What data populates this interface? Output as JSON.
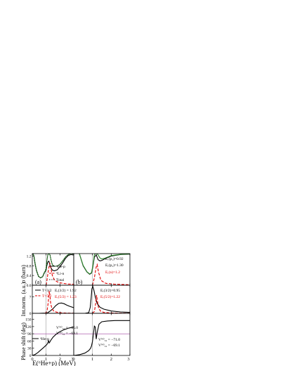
{
  "figure": {
    "x_axis_label": "E(⁶He+p)  (MeV)",
    "panel_a_tag": "(a)",
    "panel_b_tag": "(b)"
  },
  "colors": {
    "black": "#000000",
    "red": "#e00000",
    "green": "#2e8b2e",
    "vline": "#999999",
    "hline": "#a040a0"
  },
  "chart_data": [
    {
      "id": "a-top",
      "type": "line",
      "ylabel": "σ (barn)",
      "xlim": [
        0,
        3
      ],
      "ylim": [
        0,
        1.3
      ],
      "yticks": [
        0,
        0.4,
        0.8,
        1.2
      ],
      "ytick_labels": [
        "0.0",
        "0.4",
        "0.8",
        "1.2"
      ],
      "xticks": [
        0,
        1,
        2,
        3
      ],
      "legend": [
        "⁶He-p",
        "⁶Li-n",
        "Total"
      ],
      "series": [
        {
          "name": "⁶He-p",
          "color": "#000000",
          "dash": "",
          "x": [
            0.05,
            0.12,
            0.2,
            0.3,
            0.45,
            0.6,
            0.75,
            0.85,
            0.95,
            1.0,
            1.05,
            1.12,
            1.2,
            1.28,
            1.35,
            1.45,
            1.6,
            1.8,
            2.0,
            2.2,
            2.4,
            2.6,
            2.8,
            3.0
          ],
          "y": [
            1.3,
            1.18,
            0.88,
            0.6,
            0.36,
            0.3,
            0.35,
            0.48,
            0.58,
            0.63,
            0.8,
            0.95,
            0.99,
            0.82,
            0.72,
            0.62,
            0.59,
            0.63,
            0.76,
            0.92,
            1.1,
            1.22,
            1.26,
            1.24
          ]
        },
        {
          "name": "⁶Li-n",
          "color": "#e00000",
          "dash": "4,2",
          "x": [
            1.0,
            1.05,
            1.12,
            1.2,
            1.27,
            1.35,
            1.45,
            1.6,
            1.8,
            2.0,
            2.3,
            2.6,
            3.0
          ],
          "y": [
            0.0,
            0.15,
            0.45,
            0.72,
            0.92,
            0.68,
            0.4,
            0.22,
            0.14,
            0.1,
            0.07,
            0.05,
            0.04
          ]
        },
        {
          "name": "Total",
          "color": "#2e8b2e",
          "dash": "",
          "x": [
            0.05,
            0.12,
            0.2,
            0.3,
            0.45,
            0.6,
            0.75,
            0.85,
            0.95,
            1.0,
            1.05,
            1.12,
            1.2,
            1.28,
            1.35,
            1.45,
            1.6,
            1.8,
            2.0,
            2.2,
            2.4,
            2.6,
            2.8,
            3.0
          ],
          "y": [
            1.3,
            1.2,
            0.9,
            0.62,
            0.37,
            0.3,
            0.36,
            0.5,
            0.6,
            0.7,
            0.98,
            1.25,
            1.3,
            1.25,
            1.05,
            0.84,
            0.78,
            0.78,
            0.86,
            1.0,
            1.16,
            1.26,
            1.3,
            1.28
          ]
        },
        {
          "name": "",
          "color": "#000000",
          "dash": "1,2",
          "x": [
            0.05,
            0.12,
            0.2,
            0.3,
            0.45,
            0.6,
            0.75,
            0.85,
            0.95,
            1.0,
            1.05,
            1.12,
            1.2,
            1.28,
            1.35,
            1.45,
            1.6,
            1.8,
            2.0,
            2.2,
            2.4,
            2.6,
            2.8,
            3.0
          ],
          "y": [
            1.3,
            1.2,
            0.9,
            0.62,
            0.37,
            0.3,
            0.36,
            0.5,
            0.6,
            0.7,
            0.98,
            1.25,
            1.3,
            1.25,
            1.05,
            0.84,
            0.78,
            0.78,
            0.86,
            1.0,
            1.16,
            1.26,
            1.3,
            1.28
          ]
        }
      ]
    },
    {
      "id": "b-top",
      "type": "line",
      "xlim": [
        0,
        3
      ],
      "ylim": [
        0,
        1.3
      ],
      "xticks": [
        0,
        1,
        2,
        3
      ],
      "annotations": [
        "Eᵣ(p₁)=0.92",
        "Eᵣ(p₃)=1.30",
        "Eᵣ(n)=1.2"
      ],
      "series": [
        {
          "name": "",
          "color": "#000000",
          "dash": "",
          "x": [
            0.3,
            0.5,
            0.7,
            0.85,
            0.95,
            1.02,
            1.1,
            1.2,
            1.3,
            1.4,
            1.5,
            1.7,
            2.0,
            2.5,
            3.0
          ],
          "y": [
            1.3,
            0.8,
            0.55,
            0.45,
            0.5,
            0.75,
            1.15,
            1.25,
            1.05,
            1.0,
            1.02,
            1.1,
            1.2,
            1.26,
            1.28
          ]
        },
        {
          "name": "",
          "color": "#e00000",
          "dash": "4,2",
          "x": [
            1.0,
            1.1,
            1.2,
            1.25,
            1.32,
            1.45,
            1.7,
            2.2,
            3.0
          ],
          "y": [
            0.0,
            0.3,
            0.75,
            0.85,
            0.55,
            0.2,
            0.08,
            0.04,
            0.02
          ]
        },
        {
          "name": "",
          "color": "#2e8b2e",
          "dash": "",
          "x": [
            0.3,
            0.5,
            0.7,
            0.85,
            0.95,
            1.02,
            1.1,
            1.15,
            1.22,
            1.3,
            1.4,
            1.5,
            1.7,
            2.0,
            2.5,
            3.0
          ],
          "y": [
            1.3,
            0.82,
            0.56,
            0.46,
            0.52,
            0.8,
            1.25,
            1.3,
            1.3,
            1.25,
            1.12,
            1.08,
            1.12,
            1.22,
            1.27,
            1.29
          ]
        }
      ]
    },
    {
      "id": "a-mid",
      "type": "line",
      "ylabel": "Int.norm. (a.u.)",
      "xlim": [
        0,
        3
      ],
      "ylim": [
        0,
        12
      ],
      "yticks": [
        0,
        7
      ],
      "ytick_labels": [
        "0",
        "7"
      ],
      "xticks": [
        0,
        1,
        2,
        3
      ],
      "legend": [
        "T=3/2",
        "T=5/2"
      ],
      "annotations": [
        "Eᵣ(3/2) = 1.92",
        "Eᵣ(5/2) = 1.23"
      ],
      "series": [
        {
          "name": "T=3/2",
          "color": "#000000",
          "dash": "",
          "x": [
            0.5,
            0.8,
            1.0,
            1.1,
            1.2,
            1.3,
            1.5,
            1.7,
            1.9,
            2.1,
            2.3,
            2.5,
            2.7,
            3.0
          ],
          "y": [
            0.0,
            0.05,
            0.1,
            0.2,
            0.6,
            1.0,
            2.0,
            3.3,
            4.2,
            4.4,
            4.1,
            3.5,
            3.0,
            2.4
          ]
        },
        {
          "name": "T=5/2",
          "color": "#e00000",
          "dash": "4,2",
          "x": [
            0.9,
            1.0,
            1.08,
            1.15,
            1.2,
            1.23,
            1.27,
            1.33,
            1.42,
            1.55,
            1.75,
            2.1,
            2.5,
            3.0
          ],
          "y": [
            0.0,
            0.3,
            1.5,
            4.5,
            8.0,
            9.6,
            7.8,
            4.2,
            2.0,
            1.0,
            0.5,
            0.2,
            0.1,
            0.05
          ]
        }
      ]
    },
    {
      "id": "b-mid",
      "type": "line",
      "xlim": [
        0,
        3
      ],
      "ylim": [
        0,
        12
      ],
      "xticks": [
        0,
        1,
        2,
        3
      ],
      "annotations": [
        "Eᵣ(3/2)=0.95",
        "Eᵣ(5/2)=1.22"
      ],
      "series": [
        {
          "name": "",
          "color": "#000000",
          "dash": "",
          "x": [
            0.6,
            0.8,
            0.88,
            0.93,
            0.97,
            1.02,
            1.08,
            1.15,
            1.25,
            1.4,
            1.6,
            2.0,
            2.5,
            3.0
          ],
          "y": [
            0.0,
            0.3,
            2.5,
            6.5,
            10.5,
            11.5,
            9.8,
            7.0,
            4.2,
            2.6,
            1.8,
            1.0,
            0.6,
            0.4
          ]
        },
        {
          "name": "",
          "color": "#e00000",
          "dash": "4,2",
          "x": [
            1.0,
            1.1,
            1.15,
            1.2,
            1.22,
            1.26,
            1.32,
            1.42,
            1.6,
            2.0,
            2.5,
            3.0
          ],
          "y": [
            0.0,
            0.8,
            3.0,
            6.5,
            7.8,
            5.5,
            2.5,
            1.0,
            0.4,
            0.15,
            0.05,
            0.02
          ]
        }
      ]
    },
    {
      "id": "a-bot",
      "type": "line",
      "ylabel": "Phase shift (deg)",
      "xlim": [
        0,
        3
      ],
      "ylim": [
        0,
        175
      ],
      "yticks": [
        0,
        30,
        60,
        90,
        120,
        150
      ],
      "ytick_labels": [
        "0",
        "30",
        "60",
        "90",
        "120",
        "150"
      ],
      "xticks": [
        0,
        1,
        2,
        3
      ],
      "xtick_labels": [
        "0",
        "1",
        "2",
        "3"
      ],
      "legend": [
        "⁶He-p"
      ],
      "hline": 90,
      "annotations": [
        "V⁽⁴⁾₃₂ = −65.0",
        "V⁽⁴⁾₅₂ = −69.1"
      ],
      "series": [
        {
          "name": "⁶He-p",
          "color": "#000000",
          "dash": "",
          "x": [
            0.0,
            0.2,
            0.4,
            0.6,
            0.8,
            0.95,
            1.05,
            1.12,
            1.18,
            1.22,
            1.27,
            1.35,
            1.5,
            1.7,
            2.0,
            2.3,
            2.6,
            3.0
          ],
          "y": [
            0,
            4,
            12,
            22,
            32,
            40,
            45,
            52,
            62,
            52,
            56,
            64,
            76,
            87,
            99,
            107,
            113,
            118
          ]
        }
      ]
    },
    {
      "id": "b-bot",
      "type": "line",
      "xlim": [
        0,
        3
      ],
      "ylim": [
        0,
        175
      ],
      "xticks": [
        0,
        1,
        2,
        3
      ],
      "xtick_labels": [
        "0",
        "1",
        "2",
        "3"
      ],
      "hline": 90,
      "annotations": [
        "V⁽⁴⁾₃₂ = −71.0",
        "V⁽⁴⁾₅₂ = −69.1"
      ],
      "series": [
        {
          "name": "",
          "color": "#000000",
          "dash": "",
          "x": [
            0.0,
            0.3,
            0.6,
            0.8,
            0.9,
            0.95,
            1.0,
            1.05,
            1.1,
            1.15,
            1.2,
            1.25,
            1.35,
            1.5,
            1.8,
            2.2,
            2.6,
            3.0
          ],
          "y": [
            0,
            3,
            10,
            20,
            30,
            40,
            58,
            88,
            122,
            118,
            68,
            95,
            130,
            140,
            143,
            145,
            145,
            145
          ]
        }
      ]
    }
  ]
}
